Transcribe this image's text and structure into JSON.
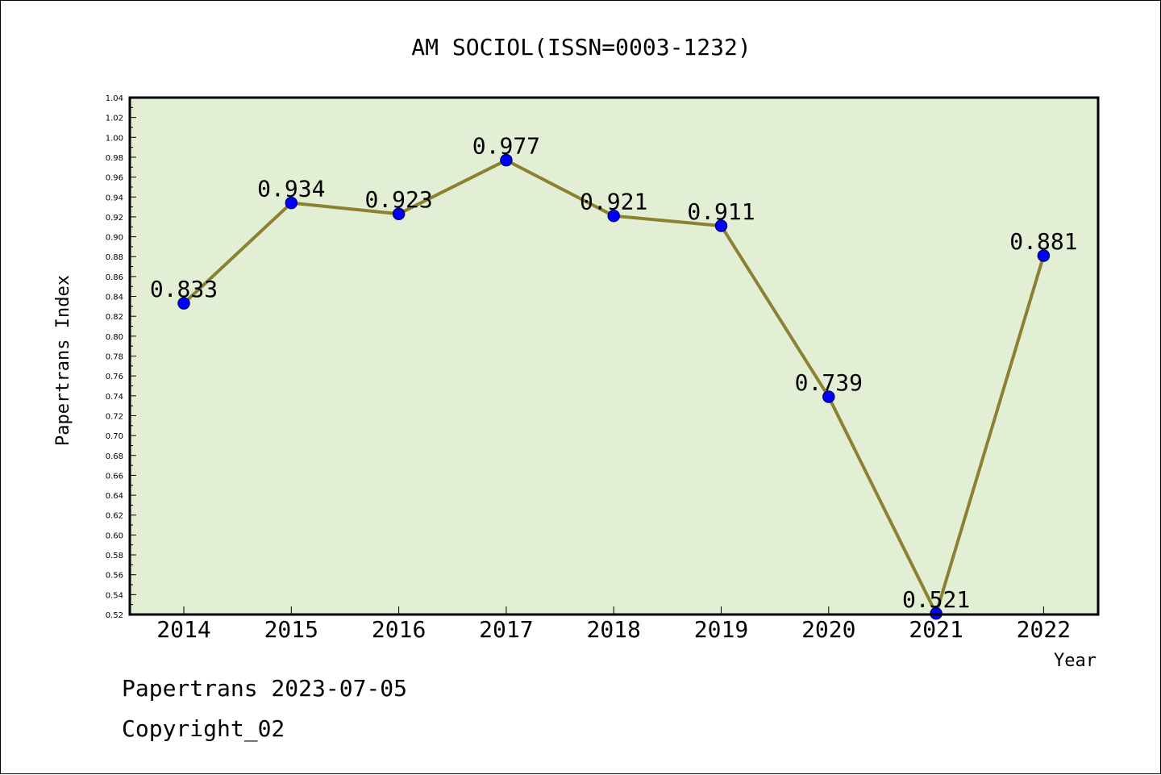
{
  "chart_data": {
    "type": "line",
    "title": "AM SOCIOL(ISSN=0003-1232)",
    "xlabel": "Year",
    "ylabel": "Papertrans Index",
    "categories": [
      "2014",
      "2015",
      "2016",
      "2017",
      "2018",
      "2019",
      "2020",
      "2021",
      "2022"
    ],
    "series": [
      {
        "values": [
          0.833,
          0.934,
          0.923,
          0.977,
          0.921,
          0.911,
          0.739,
          0.521,
          0.881
        ]
      }
    ],
    "data_labels": [
      "0.833",
      "0.934",
      "0.923",
      "0.977",
      "0.921",
      "0.911",
      "0.739",
      "0.521",
      "0.881"
    ],
    "ylim": [
      0.52,
      1.04
    ],
    "y_major_step": 0.02,
    "y_ticks": [
      "0.52",
      "0.54",
      "0.56",
      "0.58",
      "0.60",
      "0.62",
      "0.64",
      "0.66",
      "0.68",
      "0.70",
      "0.72",
      "0.74",
      "0.76",
      "0.78",
      "0.80",
      "0.82",
      "0.84",
      "0.86",
      "0.88",
      "0.90",
      "0.92",
      "0.94",
      "0.96",
      "0.98",
      "1.00",
      "1.02",
      "1.04"
    ],
    "grid": false,
    "legend": "none",
    "colors": {
      "plot_background": "#e2efd5",
      "line": "#8c8033",
      "marker": "#0000ff",
      "marker_edge": "#000080"
    }
  },
  "footer": {
    "date_text": "Papertrans 2023-07-05",
    "copyright_text": "Copyright_02"
  }
}
